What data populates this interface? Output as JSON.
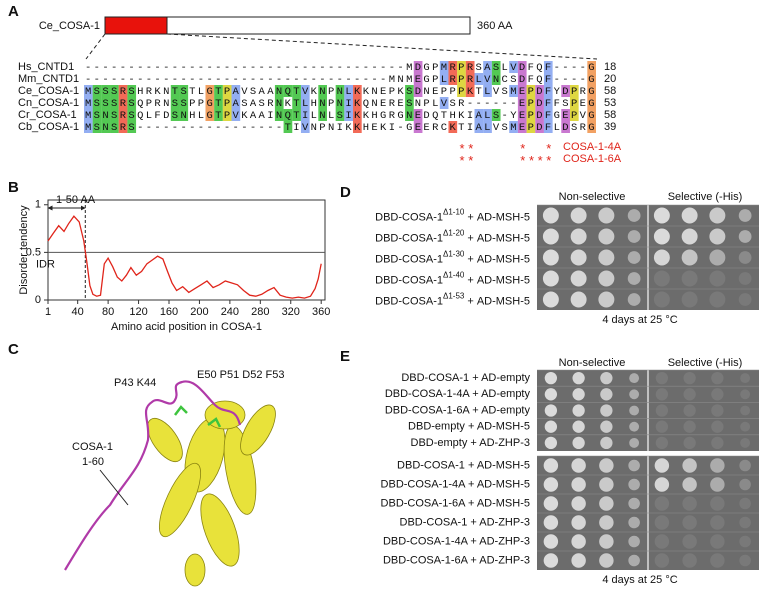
{
  "panel_a": {
    "letter": "A",
    "protein": "Ce_COSA-1",
    "length": "360 AA",
    "alignment": [
      {
        "name": "Hs_CNTD1",
        "sequence": "-------------------------------------MDGPMRPRSASLVDFQF----G",
        "end": 18
      },
      {
        "name": "Mm_CNTD1",
        "sequence": "-----------------------------------MNMEGPLRPRLVNCSDFQF----G",
        "end": 20
      },
      {
        "name": "Ce_COSA-1",
        "sequence": "MSSSRSHRKNTSTLGTPAVSAANQTVKNPNLKKNEPKSDNEPPPKTLVSMEPDFYDPRG",
        "end": 58
      },
      {
        "name": "Cn_COSA-1",
        "sequence": "MSSSRSQPRNSSPPGTPASASRNKTLHNPNIKQNERESNPLVSR------EPDFFSPEG",
        "end": 53
      },
      {
        "name": "Cr_COSA-1",
        "sequence": "MSNSRSQLFDSNHLGTPVKAAINQTILNLSIKKHGRGNEDQTHKIALS-YEPDFGEPVG",
        "end": 58
      },
      {
        "name": "Cb_COSA-1",
        "sequence": "MSNSRS-----------------TIVNPNIKKHEKI-GEERCKTIALVSMEPDFLDSRG",
        "end": 39
      }
    ],
    "mutants": [
      {
        "stars": "                                           **     *  *     ",
        "label": "COSA-1-4A"
      },
      {
        "stars": "                                           **     ****     ",
        "label": "COSA-1-6A"
      }
    ]
  },
  "chart_data": {
    "type": "line",
    "ylabel": "Disorder tendency",
    "xlabel": "Amino acid position in COSA-1",
    "annotations": {
      "region": "1-50 AA",
      "threshold": "IDR"
    },
    "threshold_value": 0.5,
    "region_end": 50,
    "x": [
      1,
      8,
      15,
      22,
      28,
      35,
      42,
      48,
      52,
      56,
      60,
      65,
      70,
      75,
      80,
      86,
      92,
      98,
      104,
      110,
      117,
      124,
      131,
      138,
      145,
      152,
      158,
      164,
      170,
      178,
      186,
      194,
      202,
      210,
      218,
      226,
      234,
      242,
      250,
      258,
      266,
      274,
      282,
      290,
      298,
      306,
      314,
      322,
      330,
      338,
      346,
      352,
      356,
      360
    ],
    "series": [
      {
        "color": "#e0251b",
        "values": [
          0.62,
          0.7,
          0.78,
          0.72,
          0.8,
          0.88,
          0.82,
          0.62,
          0.4,
          0.15,
          0.06,
          0.04,
          0.05,
          0.38,
          0.44,
          0.35,
          0.24,
          0.2,
          0.26,
          0.34,
          0.26,
          0.3,
          0.38,
          0.42,
          0.46,
          0.43,
          0.3,
          0.18,
          0.1,
          0.14,
          0.08,
          0.12,
          0.16,
          0.2,
          0.13,
          0.16,
          0.2,
          0.18,
          0.16,
          0.1,
          0.05,
          0.04,
          0.06,
          0.1,
          0.13,
          0.05,
          0.03,
          0.02,
          0.03,
          0.02,
          0.04,
          0.12,
          0.22,
          0.38
        ]
      }
    ],
    "xlim": [
      1,
      365
    ],
    "ylim": [
      0,
      1.05
    ],
    "xticks": [
      1,
      40,
      80,
      120,
      160,
      200,
      240,
      280,
      320,
      360
    ],
    "yticks": [
      0,
      0.5,
      1
    ]
  },
  "panel_b": {
    "letter": "B"
  },
  "panel_c": {
    "letter": "C",
    "region": "COSA-1",
    "range": "1-60",
    "residues_left": "P43 K44",
    "residues_right": "E50 P51 D52 F53"
  },
  "panel_d": {
    "letter": "D",
    "headers": [
      "Non-selective",
      "Selective (-His)"
    ],
    "footer": "4 days at 25 °C",
    "rows": [
      {
        "construct": "DBD-COSA-1",
        "deletion": "Δ1-10",
        "partner": "+ AD-MSH-5"
      },
      {
        "construct": "DBD-COSA-1",
        "deletion": "Δ1-20",
        "partner": "+ AD-MSH-5"
      },
      {
        "construct": "DBD-COSA-1",
        "deletion": "Δ1-30",
        "partner": "+ AD-MSH-5"
      },
      {
        "construct": "DBD-COSA-1",
        "deletion": "Δ1-40",
        "partner": "+ AD-MSH-5"
      },
      {
        "construct": "DBD-COSA-1",
        "deletion": "Δ1-53",
        "partner": "+ AD-MSH-5"
      }
    ]
  },
  "panel_e": {
    "letter": "E",
    "headers": [
      "Non-selective",
      "Selective (-His)"
    ],
    "footer": "4 days at 25 °C",
    "top_rows": [
      "DBD-COSA-1 + AD-empty",
      "DBD-COSA-1-4A + AD-empty",
      "DBD-COSA-1-6A + AD-empty",
      "DBD-empty + AD-MSH-5",
      "DBD-empty + AD-ZHP-3"
    ],
    "bottom_rows": [
      "DBD-COSA-1 + AD-MSH-5",
      "DBD-COSA-1-4A + AD-MSH-5",
      "DBD-COSA-1-6A + AD-MSH-5",
      "DBD-COSA-1 + AD-ZHP-3",
      "DBD-COSA-1-4A + AD-ZHP-3",
      "DBD-COSA-1-6A + AD-ZHP-3"
    ]
  }
}
